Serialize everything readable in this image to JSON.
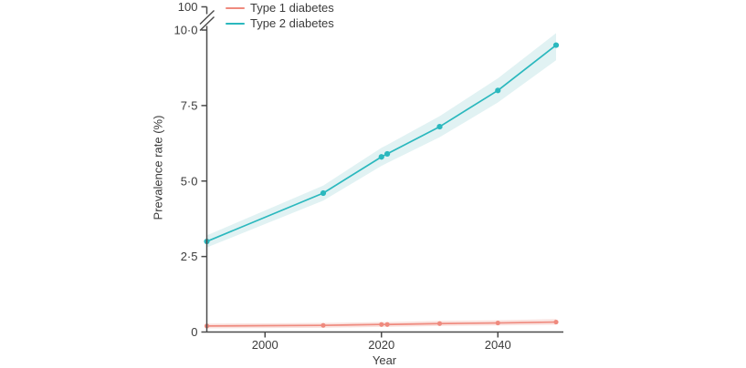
{
  "colors": {
    "background": "#ffffff",
    "axis": "#4a4a4a",
    "text": "#3b3b3b"
  },
  "chart_data": {
    "type": "line",
    "title": "",
    "xlabel": "Year",
    "ylabel": "Prevalence rate (%)",
    "xlim": [
      1990,
      2050
    ],
    "ylim": [
      0,
      10
    ],
    "y_axis_break": {
      "between": [
        10,
        100
      ],
      "style": "double-slash"
    },
    "grid": false,
    "legend_position": "top-left",
    "years": [
      1990,
      2010,
      2020,
      2021,
      2030,
      2040,
      2050
    ],
    "x_ticks": [
      {
        "value": 2000,
        "label": "2000"
      },
      {
        "value": 2020,
        "label": "2020"
      },
      {
        "value": 2040,
        "label": "2040"
      }
    ],
    "y_ticks": [
      {
        "value": 0,
        "label": "0"
      },
      {
        "value": 2.5,
        "label": "2·5"
      },
      {
        "value": 5,
        "label": "5·0"
      },
      {
        "value": 7.5,
        "label": "7·5"
      },
      {
        "value": 10,
        "label": "10·0"
      },
      {
        "value": 100,
        "label": "100",
        "beyond_break": true
      }
    ],
    "series": [
      {
        "name": "Type 1 diabetes",
        "color": "#ef8a7e",
        "band_color": "#fae3e0",
        "values": [
          0.2,
          0.22,
          0.25,
          0.25,
          0.28,
          0.3,
          0.33
        ],
        "ci_lower": [
          0.12,
          0.14,
          0.17,
          0.17,
          0.2,
          0.22,
          0.24
        ],
        "ci_upper": [
          0.28,
          0.3,
          0.33,
          0.33,
          0.37,
          0.39,
          0.43
        ]
      },
      {
        "name": "Type 2 diabetes",
        "color": "#2bb8be",
        "band_color": "#e1f2f3",
        "values": [
          3.0,
          4.6,
          5.8,
          5.9,
          6.8,
          8.0,
          9.5
        ],
        "ci_lower": [
          2.8,
          4.35,
          5.5,
          5.6,
          6.45,
          7.6,
          9.0
        ],
        "ci_upper": [
          3.2,
          4.85,
          6.1,
          6.2,
          7.15,
          8.4,
          9.9
        ]
      }
    ]
  }
}
